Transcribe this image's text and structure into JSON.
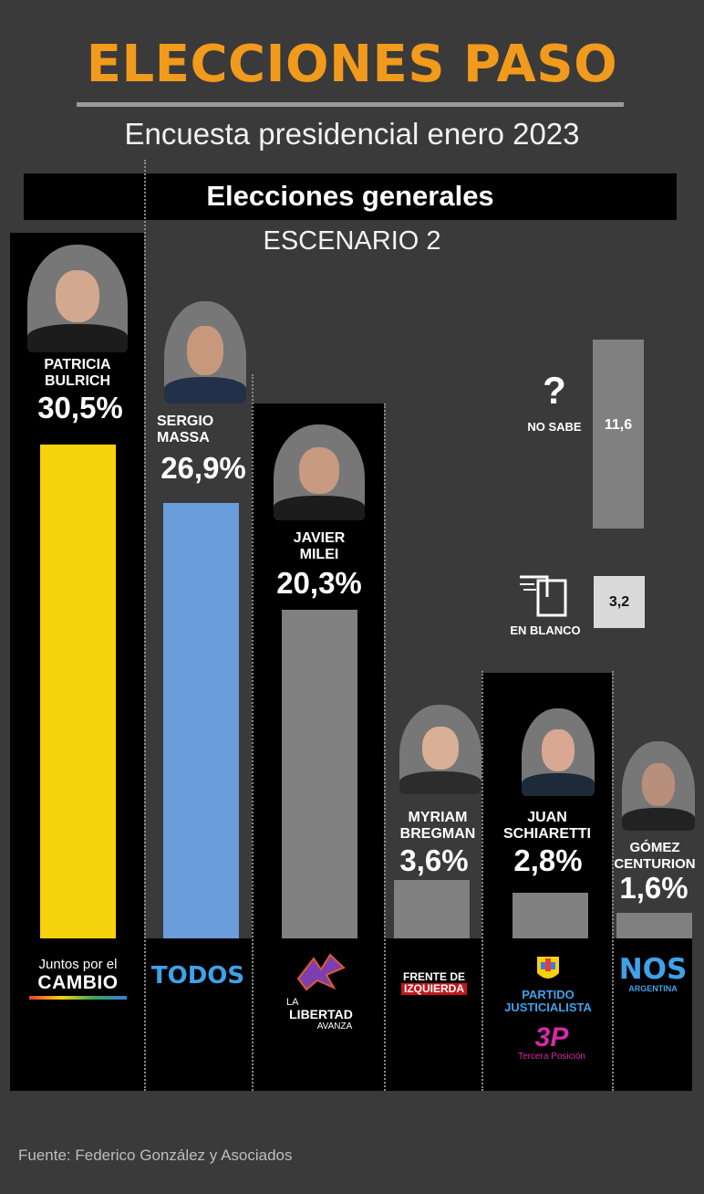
{
  "header": {
    "title": "ELECCIONES PASO",
    "subtitle": "Encuesta presidencial enero 2023",
    "section": "Elecciones generales",
    "scenario": "ESCENARIO 2"
  },
  "colors": {
    "title": "#f29a1c",
    "background": "#3a3a3a",
    "panel": "#000000",
    "bulrich": "#f5d20c",
    "massa": "#6a9ddc",
    "grey_bar": "#808080"
  },
  "chart_data": {
    "type": "bar",
    "title": "Elecciones generales",
    "categories": [
      "PATRICIA BULRICH",
      "SERGIO MASSA",
      "JAVIER MILEI",
      "MYRIAM BREGMAN",
      "JUAN SCHIARETTI",
      "GÓMEZ CENTURION"
    ],
    "values": [
      30.5,
      26.9,
      20.3,
      3.6,
      2.8,
      1.6
    ],
    "value_labels": [
      "30,5%",
      "26,9%",
      "20,3%",
      "3,6%",
      "2,8%",
      "1,6%"
    ],
    "bar_colors": [
      "#f5d20c",
      "#6a9ddc",
      "#808080",
      "#808080",
      "#808080",
      "#808080"
    ],
    "extra": [
      {
        "name": "NO SABE",
        "value": 11.6,
        "label": "11,6",
        "icon": "question-mark-icon"
      },
      {
        "name": "EN BLANCO",
        "value": 3.2,
        "label": "3,2",
        "icon": "ballot-box-icon"
      }
    ],
    "grid": false
  },
  "candidates": [
    {
      "name_line1": "PATRICIA",
      "name_line2": "BULRICH",
      "pct": "30,5%"
    },
    {
      "name_line1": "SERGIO",
      "name_line2": "MASSA",
      "pct": "26,9%"
    },
    {
      "name_line1": "JAVIER",
      "name_line2": "MILEI",
      "pct": "20,3%"
    },
    {
      "name_line1": "MYRIAM",
      "name_line2": "BREGMAN",
      "pct": "3,6%"
    },
    {
      "name_line1": "JUAN",
      "name_line2": "SCHIARETTI",
      "pct": "2,8%"
    },
    {
      "name_line1": "GÓMEZ",
      "name_line2": "CENTURION",
      "pct": "1,6%"
    }
  ],
  "parties": {
    "cambio_line1": "Juntos por el",
    "cambio_line2": "CAMBIO",
    "todos": "TODOS",
    "libertad_line1": "LA",
    "libertad_line2": "LIBERTAD",
    "libertad_line3": "AVANZA",
    "fit_line1": "FRENTE DE",
    "fit_line2": "IZQUIERDA",
    "pj_line1": "PARTIDO",
    "pj_line2": "JUSTICIALISTA",
    "tp_logo": "3P",
    "tp_name": "Tercera Posición",
    "nos": "NOS",
    "nos_sub": "ARGENTINA"
  },
  "side": {
    "no_sabe_symbol": "?",
    "no_sabe_label": "NO SABE",
    "no_sabe_value": "11,6",
    "en_blanco_label": "EN BLANCO",
    "en_blanco_value": "3,2"
  },
  "footer": {
    "source": "Fuente: Federico González y Asociados"
  }
}
